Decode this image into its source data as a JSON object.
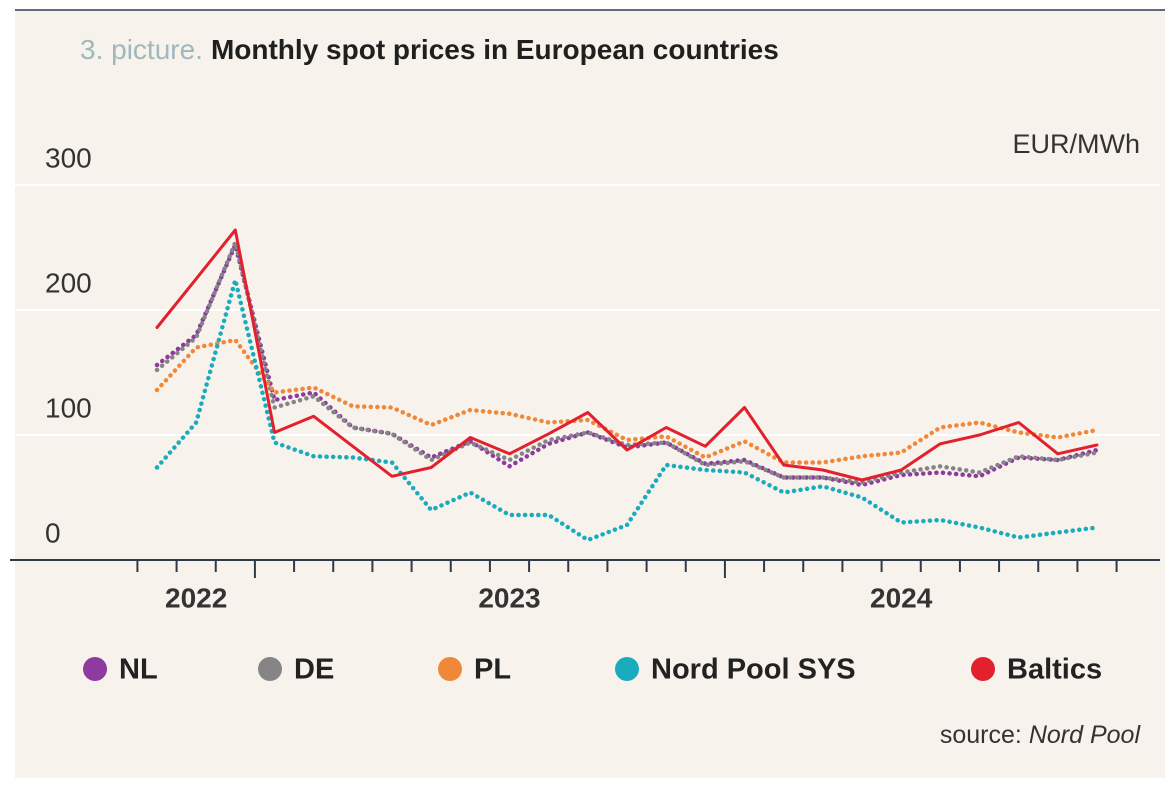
{
  "chart_data": {
    "type": "line",
    "title_prefix": "3. picture.",
    "title": "Monthly spot prices in European countries",
    "y_unit": "EUR/MWh",
    "source_label": "source:",
    "source_name": "Nord Pool",
    "categories": [
      null,
      "2022",
      null,
      null,
      null,
      null,
      null,
      null,
      null,
      "2023",
      null,
      null,
      null,
      null,
      null,
      null,
      null,
      null,
      null,
      "2024",
      null,
      null,
      null,
      null,
      null
    ],
    "ylim": [
      0,
      300
    ],
    "yticks": [
      0,
      100,
      200,
      300
    ],
    "grid": true,
    "series": [
      {
        "name": "NL",
        "color": "#8e3a9f",
        "style": "dotted",
        "values": [
          156,
          180,
          252,
          128,
          134,
          106,
          101,
          82,
          95,
          75,
          93,
          102,
          90,
          94,
          77,
          80,
          66,
          66,
          60,
          68,
          70,
          67,
          82,
          80,
          88
        ]
      },
      {
        "name": "DE",
        "color": "#858585",
        "style": "dotted",
        "values": [
          152,
          178,
          254,
          122,
          131,
          106,
          101,
          80,
          94,
          80,
          96,
          102,
          92,
          94,
          76,
          79,
          66,
          66,
          62,
          70,
          75,
          70,
          83,
          80,
          86
        ]
      },
      {
        "name": "PL",
        "color": "#f0883a",
        "style": "dotted",
        "values": [
          136,
          170,
          176,
          134,
          138,
          123,
          122,
          108,
          120,
          117,
          110,
          112,
          96,
          99,
          82,
          95,
          78,
          78,
          83,
          86,
          106,
          110,
          102,
          98,
          104
        ]
      },
      {
        "name": "Nord Pool SYS",
        "color": "#1aabbd",
        "style": "dotted",
        "values": [
          74,
          110,
          224,
          94,
          83,
          82,
          78,
          40,
          54,
          36,
          36,
          16,
          28,
          76,
          72,
          70,
          54,
          59,
          50,
          30,
          32,
          26,
          18,
          22,
          26
        ]
      },
      {
        "name": "Baltics",
        "color": "#e3202e",
        "style": "solid",
        "values": [
          186,
          225,
          264,
          102,
          115,
          91,
          67,
          74,
          98,
          85,
          101,
          118,
          88,
          106,
          91,
          122,
          76,
          72,
          64,
          72,
          93,
          100,
          110,
          85,
          92
        ]
      }
    ]
  }
}
